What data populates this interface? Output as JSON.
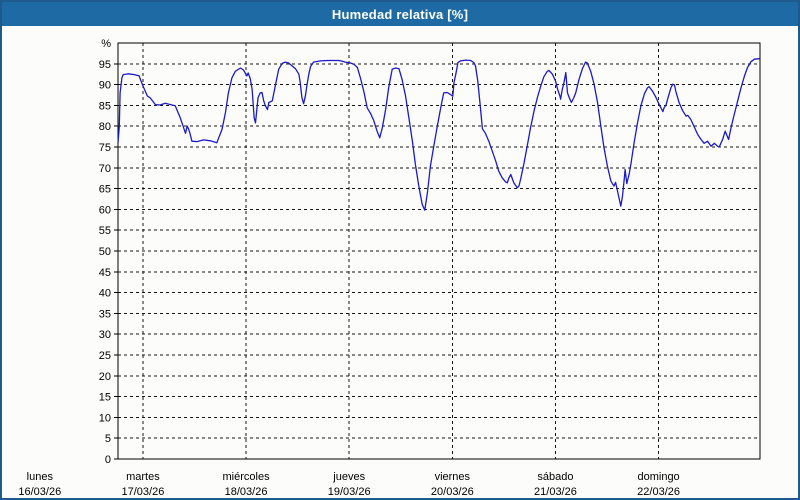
{
  "window": {
    "title": "Humedad relativa [%]"
  },
  "colors": {
    "header_bg": "#1d6aa4",
    "header_text": "#ffffff",
    "outer_border": "#1f5a8c",
    "canvas_bg": "#fcfdfa",
    "grid": "#161616",
    "axis_frame": "#000000",
    "line": "#1a1ac8"
  },
  "chart_data": {
    "type": "line",
    "title": "Humedad relativa [%]",
    "ylabel": "%",
    "ylim": [
      0,
      100
    ],
    "ytick_step": 5,
    "ytick_labels": [
      "0",
      "5",
      "10",
      "15",
      "20",
      "25",
      "30",
      "35",
      "40",
      "45",
      "50",
      "55",
      "60",
      "65",
      "70",
      "75",
      "80",
      "85",
      "90",
      "95"
    ],
    "grid": "dashed",
    "legend": "none",
    "x_axis": {
      "range_hours": [
        18.2,
        167.6
      ],
      "days": [
        {
          "label": "lunes",
          "date": "16/03/26",
          "hour": 0
        },
        {
          "label": "martes",
          "date": "17/03/26",
          "hour": 24
        },
        {
          "label": "miércoles",
          "date": "18/03/26",
          "hour": 48
        },
        {
          "label": "jueves",
          "date": "19/03/26",
          "hour": 72
        },
        {
          "label": "viernes",
          "date": "20/03/26",
          "hour": 96
        },
        {
          "label": "sábado",
          "date": "21/03/26",
          "hour": 120
        },
        {
          "label": "domingo",
          "date": "22/03/26",
          "hour": 144
        }
      ]
    },
    "series": [
      {
        "name": "Humedad relativa [%]",
        "color": "#1a1ac8",
        "points": [
          [
            18.2,
            76
          ],
          [
            18.5,
            80
          ],
          [
            18.7,
            88
          ],
          [
            19.1,
            91.6
          ],
          [
            19.4,
            92.4
          ],
          [
            20.6,
            92.6
          ],
          [
            22,
            92.4
          ],
          [
            23.1,
            92.1
          ],
          [
            24,
            89.7
          ],
          [
            25,
            87.3
          ],
          [
            25.7,
            86.8
          ],
          [
            26.9,
            85.2
          ],
          [
            28,
            85.1
          ],
          [
            29.2,
            85.5
          ],
          [
            30.4,
            85.2
          ],
          [
            31.5,
            84.9
          ],
          [
            32.7,
            82
          ],
          [
            33.5,
            79.6
          ],
          [
            33.9,
            78.3
          ],
          [
            34.3,
            80
          ],
          [
            34.6,
            79.4
          ],
          [
            35,
            78.1
          ],
          [
            35.4,
            76.4
          ],
          [
            36.6,
            76.3
          ],
          [
            38.1,
            76.7
          ],
          [
            39.7,
            76.5
          ],
          [
            41.2,
            76
          ],
          [
            42.4,
            79.2
          ],
          [
            43.2,
            83.2
          ],
          [
            43.9,
            88
          ],
          [
            44.7,
            91.6
          ],
          [
            45.5,
            93.2
          ],
          [
            46.7,
            94
          ],
          [
            47.4,
            93.5
          ],
          [
            48.2,
            92.1
          ],
          [
            48.5,
            92.8
          ],
          [
            49,
            91.3
          ],
          [
            49.4,
            88.9
          ],
          [
            49.9,
            82
          ],
          [
            50.2,
            80.8
          ],
          [
            50.6,
            84.9
          ],
          [
            50.8,
            86.9
          ],
          [
            51.3,
            88
          ],
          [
            51.7,
            88.1
          ],
          [
            52.1,
            86.1
          ],
          [
            52.5,
            84.9
          ],
          [
            53,
            84
          ],
          [
            53.3,
            85.7
          ],
          [
            54.1,
            86.1
          ],
          [
            54.8,
            89.7
          ],
          [
            55.6,
            93.7
          ],
          [
            56.4,
            95.1
          ],
          [
            57.1,
            95.4
          ],
          [
            57.9,
            95.2
          ],
          [
            58.7,
            94.5
          ],
          [
            59.5,
            93.8
          ],
          [
            60.3,
            92.5
          ],
          [
            60.6,
            90.5
          ],
          [
            61,
            86.9
          ],
          [
            61.4,
            85.4
          ],
          [
            61.8,
            87.3
          ],
          [
            62.2,
            90.1
          ],
          [
            62.6,
            92.5
          ],
          [
            63,
            94.3
          ],
          [
            63.7,
            95.4
          ],
          [
            65.3,
            95.7
          ],
          [
            66.9,
            95.8
          ],
          [
            68.4,
            95.8
          ],
          [
            69.6,
            95.8
          ],
          [
            70.4,
            95.6
          ],
          [
            71.1,
            95.4
          ],
          [
            72.3,
            95.2
          ],
          [
            73.1,
            94.9
          ],
          [
            73.9,
            94.1
          ],
          [
            74.6,
            91.6
          ],
          [
            75.4,
            88.4
          ],
          [
            76.2,
            84.4
          ],
          [
            77,
            83
          ],
          [
            77.7,
            81.4
          ],
          [
            78.5,
            78.8
          ],
          [
            79.1,
            77.2
          ],
          [
            79.7,
            79.6
          ],
          [
            80.5,
            84.1
          ],
          [
            81.2,
            89.3
          ],
          [
            82,
            93.7
          ],
          [
            82.8,
            94
          ],
          [
            83.6,
            93.8
          ],
          [
            84.3,
            91.3
          ],
          [
            85.1,
            87.3
          ],
          [
            85.9,
            82
          ],
          [
            86.7,
            76.4
          ],
          [
            87.4,
            70.8
          ],
          [
            88.2,
            65.6
          ],
          [
            89,
            61.2
          ],
          [
            89.6,
            59.8
          ],
          [
            90.2,
            64
          ],
          [
            90.9,
            70.4
          ],
          [
            91.7,
            75.2
          ],
          [
            92.5,
            80
          ],
          [
            93.3,
            84.4
          ],
          [
            94,
            88
          ],
          [
            94.8,
            88.1
          ],
          [
            95.6,
            87.6
          ],
          [
            96.1,
            87.2
          ],
          [
            96.4,
            90.5
          ],
          [
            96.8,
            92.5
          ],
          [
            97.3,
            95.3
          ],
          [
            97.9,
            95.7
          ],
          [
            99.1,
            95.9
          ],
          [
            100.3,
            95.8
          ],
          [
            101,
            95.3
          ],
          [
            101.4,
            94.5
          ],
          [
            101.9,
            91
          ],
          [
            102.4,
            86
          ],
          [
            103,
            79.4
          ],
          [
            103.7,
            78.3
          ],
          [
            104.5,
            76.4
          ],
          [
            105.3,
            74
          ],
          [
            106.1,
            71.6
          ],
          [
            106.8,
            69.2
          ],
          [
            107.6,
            67.6
          ],
          [
            108.4,
            66.6
          ],
          [
            108.8,
            66.4
          ],
          [
            109.2,
            67.6
          ],
          [
            109.6,
            68.4
          ],
          [
            110.3,
            66.4
          ],
          [
            111.1,
            65.2
          ],
          [
            111.5,
            65.6
          ],
          [
            111.9,
            67.2
          ],
          [
            112.7,
            71.2
          ],
          [
            113.5,
            75.6
          ],
          [
            114.2,
            79.6
          ],
          [
            115,
            83.6
          ],
          [
            115.8,
            86.9
          ],
          [
            116.6,
            89.7
          ],
          [
            117.3,
            91.9
          ],
          [
            118.1,
            93.2
          ],
          [
            118.5,
            93.4
          ],
          [
            119.3,
            92.5
          ],
          [
            120,
            90.9
          ],
          [
            120.5,
            88.9
          ],
          [
            121.1,
            87
          ],
          [
            121.2,
            86.5
          ],
          [
            121.6,
            88.9
          ],
          [
            122,
            90.5
          ],
          [
            122.4,
            92.9
          ],
          [
            122.8,
            88
          ],
          [
            123.2,
            86.9
          ],
          [
            123.7,
            85.7
          ],
          [
            124.3,
            86.9
          ],
          [
            124.7,
            88
          ],
          [
            125.5,
            91.3
          ],
          [
            126.3,
            93.9
          ],
          [
            127,
            95.4
          ],
          [
            127.4,
            95.2
          ],
          [
            128.2,
            93.2
          ],
          [
            129,
            90.1
          ],
          [
            129.8,
            85.6
          ],
          [
            130.5,
            80.4
          ],
          [
            131.3,
            74.8
          ],
          [
            132.1,
            70.4
          ],
          [
            132.9,
            66.8
          ],
          [
            133.6,
            65.6
          ],
          [
            134,
            66.5
          ],
          [
            134.7,
            63.2
          ],
          [
            135.2,
            60.8
          ],
          [
            135.6,
            63.2
          ],
          [
            136,
            67.2
          ],
          [
            136.2,
            69.6
          ],
          [
            136.6,
            66.2
          ],
          [
            137.2,
            68.8
          ],
          [
            137.6,
            71.2
          ],
          [
            138.3,
            76
          ],
          [
            139.1,
            80.8
          ],
          [
            139.9,
            85
          ],
          [
            140.7,
            87.8
          ],
          [
            141.4,
            89.2
          ],
          [
            141.8,
            89.5
          ],
          [
            142.6,
            88.4
          ],
          [
            143.4,
            86.9
          ],
          [
            144,
            85.5
          ],
          [
            144.6,
            84.3
          ],
          [
            145,
            83.5
          ],
          [
            145.3,
            84.5
          ],
          [
            145.7,
            85
          ],
          [
            146.1,
            86.5
          ],
          [
            146.9,
            89.3
          ],
          [
            147.3,
            90.1
          ],
          [
            147.7,
            89.9
          ],
          [
            148,
            88.4
          ],
          [
            148.8,
            85.6
          ],
          [
            149.6,
            83.7
          ],
          [
            150.4,
            82.4
          ],
          [
            150.8,
            82.6
          ],
          [
            151.5,
            81.6
          ],
          [
            152.3,
            79.8
          ],
          [
            153.1,
            78
          ],
          [
            153.9,
            76.8
          ],
          [
            154.6,
            75.9
          ],
          [
            155.4,
            76.4
          ],
          [
            156.2,
            75.2
          ],
          [
            157,
            75.9
          ],
          [
            157.7,
            75.2
          ],
          [
            158.1,
            75
          ],
          [
            158.9,
            76.8
          ],
          [
            159.5,
            78.8
          ],
          [
            160.3,
            76.8
          ],
          [
            160.9,
            79.8
          ],
          [
            161.6,
            82.8
          ],
          [
            162.4,
            86.1
          ],
          [
            163.2,
            89.3
          ],
          [
            164,
            92.1
          ],
          [
            164.7,
            94.1
          ],
          [
            165.5,
            95.5
          ],
          [
            166.3,
            96.1
          ],
          [
            167.1,
            96.2
          ],
          [
            167.6,
            96.2
          ]
        ]
      }
    ]
  }
}
